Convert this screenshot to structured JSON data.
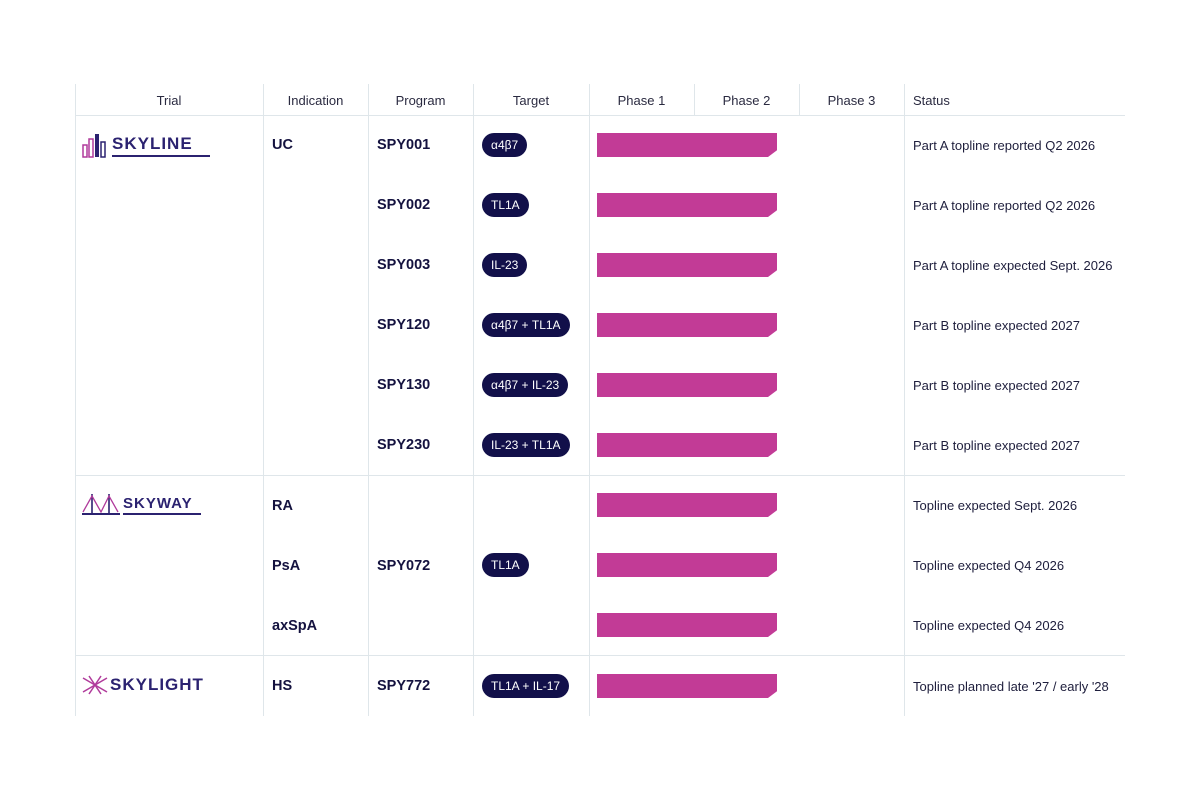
{
  "headers": {
    "trial": "Trial",
    "indication": "Indication",
    "program": "Program",
    "target": "Target",
    "phase1": "Phase 1",
    "phase2": "Phase 2",
    "phase3": "Phase 3",
    "status": "Status"
  },
  "trials": [
    {
      "logo_text": "SKYLINE",
      "logo_icon": "skyline-buildings-icon"
    },
    {
      "logo_text": "SKYWAY",
      "logo_icon": "bridge-icon"
    },
    {
      "logo_text": "SKYLIGHT",
      "logo_icon": "light-rays-icon"
    }
  ],
  "rows": [
    {
      "indication": "UC",
      "program": "SPY001",
      "target": "α4β7",
      "phase_progress": 1.0,
      "status": "Part A topline reported Q2 2026"
    },
    {
      "indication": "",
      "program": "SPY002",
      "target": "TL1A",
      "phase_progress": 1.0,
      "status": "Part A topline reported Q2 2026"
    },
    {
      "indication": "",
      "program": "SPY003",
      "target": "IL-23",
      "phase_progress": 1.0,
      "status": "Part A topline expected Sept. 2026"
    },
    {
      "indication": "",
      "program": "SPY120",
      "target": "α4β7 + TL1A",
      "phase_progress": 1.0,
      "status": "Part B topline expected 2027"
    },
    {
      "indication": "",
      "program": "SPY130",
      "target": "α4β7 + IL-23",
      "phase_progress": 1.0,
      "status": "Part B topline expected 2027"
    },
    {
      "indication": "",
      "program": "SPY230",
      "target": "IL-23 + TL1A",
      "phase_progress": 1.0,
      "status": "Part B topline expected 2027"
    },
    {
      "indication": "RA",
      "program": "",
      "target": "",
      "phase_progress": 1.0,
      "status": "Topline expected Sept. 2026"
    },
    {
      "indication": "PsA",
      "program": "SPY072",
      "target": "TL1A",
      "phase_progress": 1.0,
      "status": "Topline expected Q4 2026"
    },
    {
      "indication": "axSpA",
      "program": "",
      "target": "",
      "phase_progress": 1.0,
      "status": "Topline expected Q4 2026"
    },
    {
      "indication": "HS",
      "program": "SPY772",
      "target": "TL1A + IL-17",
      "phase_progress": 1.0,
      "status": "Topline planned late '27 / early '28"
    }
  ],
  "colors": {
    "bar": "#c23b96",
    "pill_bg": "#12104a",
    "logo_purple": "#2b2270",
    "logo_magenta": "#b03a9b"
  }
}
